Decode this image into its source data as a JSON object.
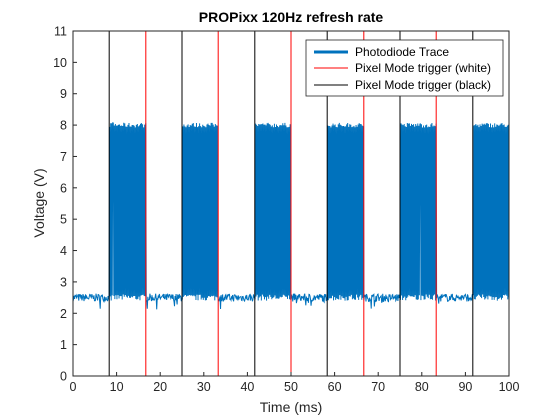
{
  "chart_data": {
    "type": "line",
    "title": "PROPixx 120Hz refresh rate",
    "xlabel": "Time (ms)",
    "ylabel": "Voltage (V)",
    "xlim": [
      0,
      100
    ],
    "ylim": [
      0,
      11
    ],
    "xticks": [
      0,
      10,
      20,
      30,
      40,
      50,
      60,
      70,
      80,
      90,
      100
    ],
    "yticks": [
      0,
      1,
      2,
      3,
      4,
      5,
      6,
      7,
      8,
      9,
      10,
      11
    ],
    "grid": false,
    "legend_position": "top-right",
    "series": [
      {
        "name": "Photodiode Trace",
        "kind": "square-wave",
        "color": "#0072BD",
        "low_level": 2.5,
        "high_level": 8.0,
        "high_intervals": [
          [
            8.3,
            16.7
          ],
          [
            25.0,
            33.3
          ],
          [
            41.7,
            50.0
          ],
          [
            58.3,
            66.7
          ],
          [
            75.0,
            83.3
          ],
          [
            91.7,
            100.0
          ]
        ]
      },
      {
        "name": "Pixel Mode trigger (white)",
        "kind": "vertical-lines",
        "color": "#FF0000",
        "x": [
          0,
          16.7,
          33.3,
          50.0,
          66.7,
          83.3
        ]
      },
      {
        "name": "Pixel Mode trigger (black)",
        "kind": "vertical-lines",
        "color": "#000000",
        "x": [
          8.3,
          25.0,
          41.7,
          58.3,
          75.0,
          91.7
        ]
      }
    ]
  }
}
